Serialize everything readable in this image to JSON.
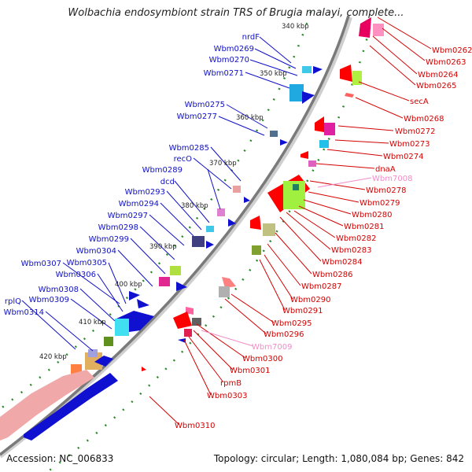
{
  "title": "Wolbachia endosymbiont strain TRS of Brugia malayi, complete...",
  "footer": {
    "accession": "Accession: NC_006833",
    "topology": "Topology: circular; Length: 1,080,084 bp; Genes: 842"
  },
  "colors": {
    "forward_label": "#1010c8",
    "reverse_label": "#d40000",
    "rna_label": "#f08cc8",
    "backbone": "#808080",
    "ticks": "#2a8a2a"
  },
  "scale_labels": [
    "340 kbp",
    "350 kbp",
    "360 kbp",
    "370 kbp",
    "380 kbp",
    "390 kbp",
    "400 kbp",
    "410 kbp",
    "420 kbp"
  ],
  "forward_genes": [
    "nrdF",
    "Wbm0269",
    "Wbm0270",
    "Wbm0271",
    "Wbm0275",
    "Wbm0277",
    "Wbm0285",
    "recO",
    "Wbm0289",
    "dcd",
    "Wbm0293",
    "Wbm0294",
    "Wbm0297",
    "Wbm0298",
    "Wbm0299",
    "Wbm0304",
    "Wbm0307",
    "Wbm0305",
    "Wbm0306",
    "Wbm0308",
    "Wbm0309",
    "rplQ",
    "Wbm0314"
  ],
  "reverse_genes": [
    "Wbm0262",
    "Wbm0263",
    "Wbm0264",
    "Wbm0265",
    "secA",
    "Wbm0268",
    "Wbm0272",
    "Wbm0273",
    "Wbm0274",
    "dnaA",
    "Wbm0278",
    "Wbm0279",
    "Wbm0280",
    "Wbm0281",
    "Wbm0282",
    "Wbm0283",
    "Wbm0284",
    "Wbm0286",
    "Wbm0287",
    "Wbm0290",
    "Wbm0291",
    "Wbm0295",
    "Wbm0296",
    "Wbm0300",
    "Wbm0301",
    "rpmB",
    "Wbm0303",
    "Wbm0310"
  ],
  "rna_genes": [
    "Wbm7008",
    "Wbm7009"
  ]
}
